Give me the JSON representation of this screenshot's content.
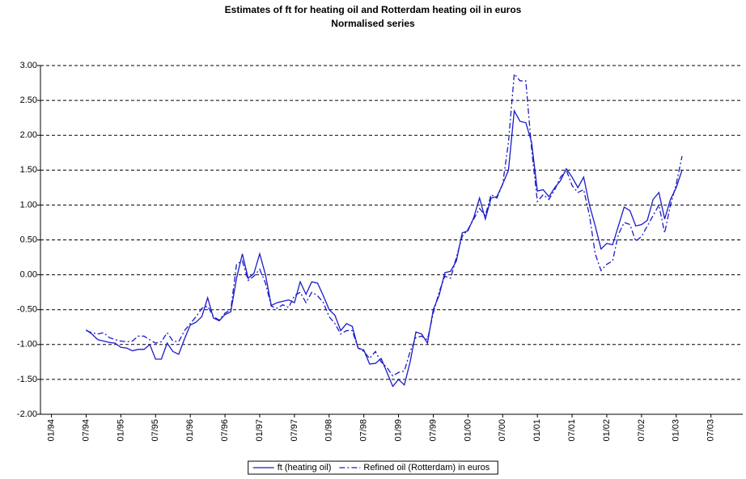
{
  "chart_data": {
    "type": "line",
    "title": "Estimates of ft for heating oil and Rotterdam heating oil in euros",
    "subtitle": "Normalised series",
    "categories": [
      "01/94",
      null,
      null,
      null,
      null,
      null,
      "07/94",
      null,
      null,
      null,
      null,
      null,
      "01/95",
      null,
      null,
      null,
      null,
      null,
      "07/95",
      null,
      null,
      null,
      null,
      null,
      "01/96",
      null,
      null,
      null,
      null,
      null,
      "07/96",
      null,
      null,
      null,
      null,
      null,
      "01/97",
      null,
      null,
      null,
      null,
      null,
      "07/97",
      null,
      null,
      null,
      null,
      null,
      "01/98",
      null,
      null,
      null,
      null,
      null,
      "07/98",
      null,
      null,
      null,
      null,
      null,
      "01/99",
      null,
      null,
      null,
      null,
      null,
      "07/99",
      null,
      null,
      null,
      null,
      null,
      "01/00",
      null,
      null,
      null,
      null,
      null,
      "07/00",
      null,
      null,
      null,
      null,
      null,
      "01/01",
      null,
      null,
      null,
      null,
      null,
      "07/01",
      null,
      null,
      null,
      null,
      null,
      "01/02",
      null,
      null,
      null,
      null,
      null,
      "07/02",
      null,
      null,
      null,
      null,
      null,
      "01/03",
      null,
      null,
      null,
      null,
      null,
      "07/03",
      null,
      null,
      null,
      null,
      null
    ],
    "series": [
      {
        "name": "ft (heating oil)",
        "color": "#1a1ac8",
        "style": "solid",
        "values": [
          null,
          null,
          null,
          null,
          null,
          null,
          -0.79,
          -0.85,
          -0.93,
          -0.95,
          -0.97,
          -0.98,
          -1.04,
          -1.05,
          -1.09,
          -1.07,
          -1.07,
          -1.0,
          -1.21,
          -1.21,
          -0.98,
          -1.1,
          -1.14,
          -0.92,
          -0.72,
          -0.68,
          -0.6,
          -0.33,
          -0.62,
          -0.66,
          -0.57,
          -0.53,
          -0.05,
          0.3,
          -0.05,
          0.02,
          0.3,
          0.0,
          -0.44,
          -0.4,
          -0.38,
          -0.36,
          -0.4,
          -0.1,
          -0.28,
          -0.1,
          -0.12,
          -0.3,
          -0.5,
          -0.58,
          -0.8,
          -0.7,
          -0.74,
          -1.05,
          -1.08,
          -1.28,
          -1.27,
          -1.2,
          -1.4,
          -1.6,
          -1.5,
          -1.58,
          -1.25,
          -0.82,
          -0.85,
          -0.98,
          -0.5,
          -0.3,
          0.03,
          0.05,
          0.2,
          0.6,
          0.63,
          0.82,
          1.1,
          0.8,
          1.1,
          1.12,
          1.3,
          1.5,
          2.35,
          2.2,
          2.18,
          1.9,
          1.2,
          1.22,
          1.12,
          1.25,
          1.35,
          1.52,
          1.4,
          1.25,
          1.4,
          1.0,
          0.7,
          0.37,
          0.45,
          0.43,
          0.7,
          0.97,
          0.92,
          0.7,
          0.72,
          0.78,
          1.08,
          1.18,
          0.8,
          1.08,
          1.25,
          1.5,
          null,
          null,
          null,
          null,
          null,
          null,
          null,
          null,
          null,
          null
        ]
      },
      {
        "name": "Refined oil (Rotterdam) in euros",
        "color": "#1a1ac8",
        "style": "dash-dot",
        "values": [
          null,
          null,
          null,
          null,
          null,
          null,
          -0.8,
          -0.83,
          -0.85,
          -0.83,
          -0.9,
          -0.93,
          -0.95,
          -0.96,
          -0.95,
          -0.88,
          -0.88,
          -0.93,
          -0.98,
          -0.96,
          -0.83,
          -0.95,
          -0.96,
          -0.8,
          -0.7,
          -0.6,
          -0.48,
          -0.45,
          -0.6,
          -0.65,
          -0.55,
          -0.5,
          0.15,
          0.2,
          -0.08,
          -0.02,
          0.08,
          -0.12,
          -0.45,
          -0.48,
          -0.43,
          -0.47,
          -0.3,
          -0.25,
          -0.4,
          -0.25,
          -0.3,
          -0.4,
          -0.6,
          -0.7,
          -0.85,
          -0.8,
          -0.8,
          -1.05,
          -1.1,
          -1.2,
          -1.1,
          -1.25,
          -1.33,
          -1.45,
          -1.4,
          -1.38,
          -1.1,
          -0.9,
          -0.88,
          -0.93,
          -0.55,
          -0.25,
          -0.02,
          -0.05,
          0.25,
          0.55,
          0.65,
          0.8,
          0.95,
          0.85,
          1.15,
          1.1,
          1.3,
          1.9,
          2.88,
          2.78,
          2.78,
          1.8,
          1.05,
          1.15,
          1.08,
          1.22,
          1.4,
          1.5,
          1.28,
          1.18,
          1.22,
          0.85,
          0.3,
          0.06,
          0.15,
          0.2,
          0.58,
          0.75,
          0.72,
          0.48,
          0.55,
          0.7,
          0.85,
          1.0,
          0.6,
          1.0,
          1.3,
          1.7,
          null,
          null,
          null,
          null,
          null,
          null,
          null,
          null,
          null,
          null
        ]
      }
    ],
    "ylim": [
      -2,
      3
    ],
    "yticks": [
      {
        "value": -2,
        "label": "-2.00"
      },
      {
        "value": -1.5,
        "label": "-1.50"
      },
      {
        "value": -1,
        "label": "-1.00"
      },
      {
        "value": -0.5,
        "label": "-0.50"
      },
      {
        "value": 0,
        "label": "0.00"
      },
      {
        "value": 0.5,
        "label": "0.50"
      },
      {
        "value": 1,
        "label": "1.00"
      },
      {
        "value": 1.5,
        "label": "1.50"
      },
      {
        "value": 2,
        "label": "2.00"
      },
      {
        "value": 2.5,
        "label": "2.50"
      },
      {
        "value": 3,
        "label": "3.00"
      }
    ],
    "grid": true,
    "legend": "bottom"
  }
}
